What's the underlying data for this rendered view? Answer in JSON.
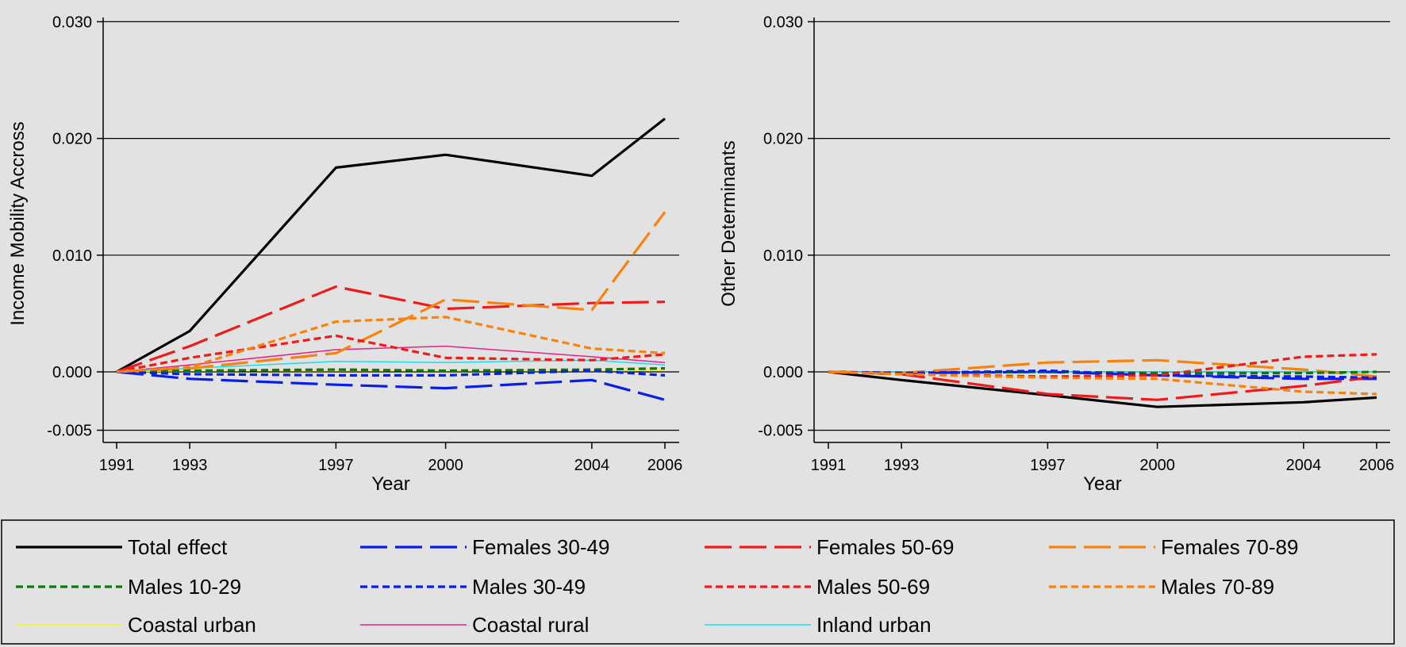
{
  "chart_data": [
    {
      "type": "line",
      "xlabel": "Year",
      "ylabel": "Income Mobility Accross",
      "x": [
        1991,
        1993,
        1997,
        2000,
        2004,
        2006
      ],
      "xticks": [
        "1991",
        "1993",
        "1997",
        "2000",
        "2004",
        "2006"
      ],
      "ylim": [
        -0.006,
        0.031
      ],
      "yticks": [
        "-0.005",
        "0.000",
        "0.010",
        "0.020",
        "0.030"
      ],
      "ytick_values": [
        -0.005,
        0.0,
        0.01,
        0.02,
        0.03
      ],
      "grid": true,
      "series": [
        {
          "name": "Total effect",
          "values": [
            0,
            0.0035,
            0.0175,
            0.0186,
            0.0168,
            0.0217
          ]
        },
        {
          "name": "Females 30-49",
          "values": [
            0,
            -0.0006,
            -0.0011,
            -0.0014,
            -0.0007,
            -0.0024
          ]
        },
        {
          "name": "Females 50-69",
          "values": [
            0,
            0.0022,
            0.0073,
            0.0054,
            0.0059,
            0.006
          ]
        },
        {
          "name": "Females 70-89",
          "values": [
            0,
            0.0003,
            0.0016,
            0.0062,
            0.0053,
            0.0137
          ]
        },
        {
          "name": "Males 10-29",
          "values": [
            0,
            0.0001,
            0.0002,
            0.0001,
            0.0002,
            0.0003
          ]
        },
        {
          "name": "Males 30-49",
          "values": [
            0,
            -0.0002,
            -0.0003,
            -0.0003,
            0.0001,
            -0.0003
          ]
        },
        {
          "name": "Males 50-69",
          "values": [
            0,
            0.0012,
            0.0031,
            0.0012,
            0.001,
            0.0015
          ]
        },
        {
          "name": "Males 70-89",
          "values": [
            0,
            0.0004,
            0.0043,
            0.0047,
            0.002,
            0.0016
          ]
        },
        {
          "name": "Coastal urban",
          "values": [
            0,
            0.0001,
            0.0001,
            0.0001,
            0.0001,
            0.0002
          ]
        },
        {
          "name": "Coastal rural",
          "values": [
            0,
            0.0006,
            0.0019,
            0.0022,
            0.0013,
            0.0008
          ]
        },
        {
          "name": "Inland urban",
          "values": [
            0,
            0.0003,
            0.0009,
            0.0008,
            0.001,
            0.0006
          ]
        }
      ]
    },
    {
      "type": "line",
      "xlabel": "Year",
      "ylabel": "Other Determinants",
      "x": [
        1991,
        1993,
        1997,
        2000,
        2004,
        2006
      ],
      "xticks": [
        "1991",
        "1993",
        "1997",
        "2000",
        "2004",
        "2006"
      ],
      "ylim": [
        -0.006,
        0.031
      ],
      "yticks": [
        "-0.005",
        "0.000",
        "0.010",
        "0.020",
        "0.030"
      ],
      "ytick_values": [
        -0.005,
        0.0,
        0.01,
        0.02,
        0.03
      ],
      "grid": true,
      "series": [
        {
          "name": "Total effect",
          "values": [
            0,
            -0.0007,
            -0.002,
            -0.003,
            -0.0026,
            -0.0022
          ]
        },
        {
          "name": "Females 30-49",
          "values": [
            0,
            -0.0001,
            0.0,
            -0.0003,
            -0.0006,
            -0.0006
          ]
        },
        {
          "name": "Females 50-69",
          "values": [
            0,
            -0.0002,
            -0.0019,
            -0.0024,
            -0.0012,
            -0.0004
          ]
        },
        {
          "name": "Females 70-89",
          "values": [
            0,
            -0.0001,
            0.0008,
            0.001,
            0.0002,
            -0.0004
          ]
        },
        {
          "name": "Males 10-29",
          "values": [
            0,
            -0.0001,
            0.0,
            -0.0001,
            -0.0001,
            0.0
          ]
        },
        {
          "name": "Males 30-49",
          "values": [
            0,
            -0.0001,
            0.0001,
            -0.0003,
            -0.0004,
            -0.0005
          ]
        },
        {
          "name": "Males 50-69",
          "values": [
            0,
            -0.0002,
            -0.0004,
            -0.0003,
            0.0013,
            0.0015
          ]
        },
        {
          "name": "Males 70-89",
          "values": [
            0,
            -0.0002,
            -0.0005,
            -0.0006,
            -0.0017,
            -0.0019
          ]
        },
        {
          "name": "Coastal urban",
          "values": [
            0,
            0,
            0,
            0,
            0,
            0
          ]
        },
        {
          "name": "Coastal rural",
          "values": [
            0,
            0,
            0,
            0,
            0,
            0
          ]
        },
        {
          "name": "Inland urban",
          "values": [
            0,
            0,
            0,
            0,
            0,
            0
          ]
        }
      ]
    }
  ],
  "legend": {
    "placement": "bottom",
    "items": [
      {
        "name": "Total effect",
        "color": "#000000",
        "dash": "solid",
        "weight": "thick"
      },
      {
        "name": "Females 30-49",
        "color": "#0a1ee6",
        "dash": "long-dash",
        "weight": "thick"
      },
      {
        "name": "Females 50-69",
        "color": "#ef1b1b",
        "dash": "long-dash",
        "weight": "thick"
      },
      {
        "name": "Females 70-89",
        "color": "#f7820e",
        "dash": "long-dash",
        "weight": "thick"
      },
      {
        "name": "Males 10-29",
        "color": "#0a7a0a",
        "dash": "short-dash",
        "weight": "thick"
      },
      {
        "name": "Males 30-49",
        "color": "#0a1ee6",
        "dash": "short-dash",
        "weight": "thick"
      },
      {
        "name": "Males 50-69",
        "color": "#ef1b1b",
        "dash": "short-dash",
        "weight": "thick"
      },
      {
        "name": "Males 70-89",
        "color": "#f7820e",
        "dash": "short-dash",
        "weight": "thick"
      },
      {
        "name": "Coastal urban",
        "color": "#f5f517",
        "dash": "solid",
        "weight": "thin"
      },
      {
        "name": "Coastal rural",
        "color": "#e8208a",
        "dash": "solid",
        "weight": "thin"
      },
      {
        "name": "Inland urban",
        "color": "#16e0ee",
        "dash": "solid",
        "weight": "thin"
      }
    ]
  }
}
